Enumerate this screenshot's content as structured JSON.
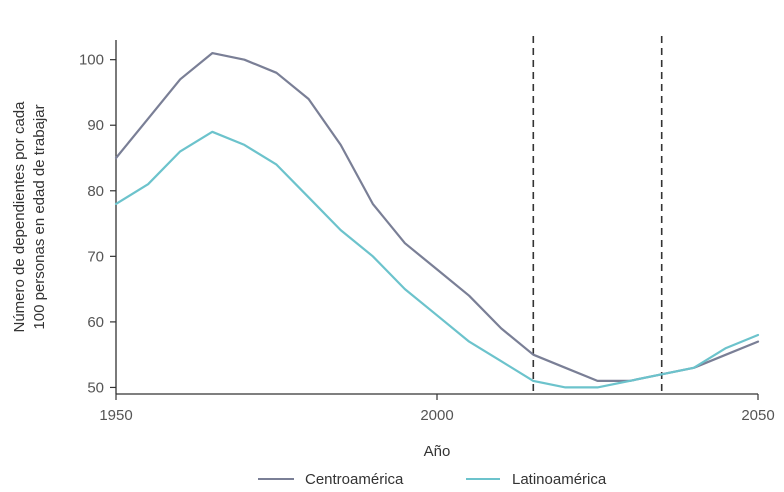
{
  "chart_data": {
    "type": "line",
    "title": "",
    "xlabel": "Año",
    "ylabel": [
      "Número de dependientes por cada",
      "100 personas en edad de trabajar"
    ],
    "xlim": [
      1950,
      2050
    ],
    "ylim": [
      49,
      103
    ],
    "xticks": [
      1950,
      2000,
      2050
    ],
    "yticks": [
      50,
      60,
      70,
      80,
      90,
      100
    ],
    "grid": false,
    "legend_position": "bottom",
    "vertical_lines": [
      2015,
      2035
    ],
    "series": [
      {
        "name": "Centroamérica",
        "color": "#7a7f96",
        "points": [
          [
            1950,
            85
          ],
          [
            1955,
            91
          ],
          [
            1960,
            97
          ],
          [
            1965,
            101
          ],
          [
            1970,
            100
          ],
          [
            1975,
            98
          ],
          [
            1980,
            94
          ],
          [
            1985,
            87
          ],
          [
            1990,
            78
          ],
          [
            1995,
            72
          ],
          [
            2000,
            68
          ],
          [
            2005,
            64
          ],
          [
            2010,
            59
          ],
          [
            2015,
            55
          ],
          [
            2020,
            53
          ],
          [
            2025,
            51
          ],
          [
            2030,
            51
          ],
          [
            2035,
            52
          ],
          [
            2040,
            53
          ],
          [
            2045,
            55
          ],
          [
            2050,
            57
          ]
        ]
      },
      {
        "name": "Latinoamérica",
        "color": "#6cc3cc",
        "points": [
          [
            1950,
            78
          ],
          [
            1955,
            81
          ],
          [
            1960,
            86
          ],
          [
            1965,
            89
          ],
          [
            1970,
            87
          ],
          [
            1975,
            84
          ],
          [
            1980,
            79
          ],
          [
            1985,
            74
          ],
          [
            1990,
            70
          ],
          [
            1995,
            65
          ],
          [
            2000,
            61
          ],
          [
            2005,
            57
          ],
          [
            2010,
            54
          ],
          [
            2015,
            51
          ],
          [
            2020,
            50
          ],
          [
            2025,
            50
          ],
          [
            2030,
            51
          ],
          [
            2035,
            52
          ],
          [
            2040,
            53
          ],
          [
            2045,
            56
          ],
          [
            2050,
            58
          ]
        ]
      }
    ]
  }
}
